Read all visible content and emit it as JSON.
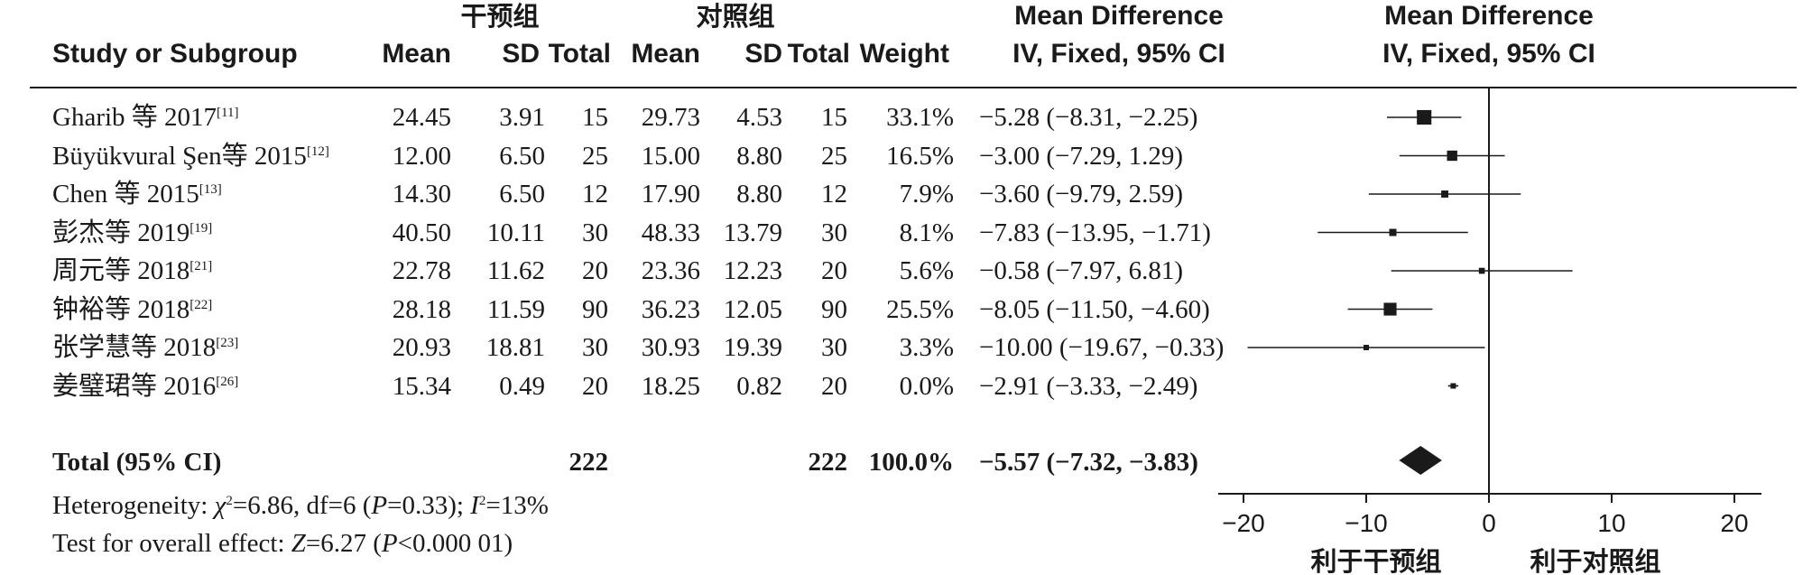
{
  "header": {
    "group1_name": "干预组",
    "group2_name": "对照组",
    "study_col": "Study or Subgroup",
    "mean1": "Mean",
    "sd1": "SD",
    "total1": "Total",
    "mean2": "Mean",
    "sd2": "SD",
    "total2": "Total",
    "weight": "Weight",
    "md_title": "Mean Difference",
    "md_method": "IV, Fixed, 95% CI",
    "plot_title": "Mean Difference",
    "plot_method": "IV, Fixed, 95% CI"
  },
  "rows": [
    {
      "study": "Gharib 等 2017",
      "ref": "[11]",
      "mean1": "24.45",
      "sd1": "3.91",
      "n1": "15",
      "mean2": "29.73",
      "sd2": "4.53",
      "n2": "15",
      "weight": "33.1%",
      "ci": "−5.28 (−8.31, −2.25)"
    },
    {
      "study": "Büyükvural Şen等 2015",
      "ref": "[12]",
      "mean1": "12.00",
      "sd1": "6.50",
      "n1": "25",
      "mean2": "15.00",
      "sd2": "8.80",
      "n2": "25",
      "weight": "16.5%",
      "ci": "−3.00 (−7.29, 1.29)"
    },
    {
      "study": "Chen 等 2015",
      "ref": "[13]",
      "mean1": "14.30",
      "sd1": "6.50",
      "n1": "12",
      "mean2": "17.90",
      "sd2": "8.80",
      "n2": "12",
      "weight": "7.9%",
      "ci": "−3.60 (−9.79, 2.59)"
    },
    {
      "study": "彭杰等 2019",
      "ref": "[19]",
      "mean1": "40.50",
      "sd1": "10.11",
      "n1": "30",
      "mean2": "48.33",
      "sd2": "13.79",
      "n2": "30",
      "weight": "8.1%",
      "ci": "−7.83 (−13.95, −1.71)"
    },
    {
      "study": "周元等 2018",
      "ref": "[21]",
      "mean1": "22.78",
      "sd1": "11.62",
      "n1": "20",
      "mean2": "23.36",
      "sd2": "12.23",
      "n2": "20",
      "weight": "5.6%",
      "ci": "−0.58 (−7.97, 6.81)"
    },
    {
      "study": "钟裕等 2018",
      "ref": "[22]",
      "mean1": "28.18",
      "sd1": "11.59",
      "n1": "90",
      "mean2": "36.23",
      "sd2": "12.05",
      "n2": "90",
      "weight": "25.5%",
      "ci": "−8.05 (−11.50, −4.60)"
    },
    {
      "study": "张学慧等 2018",
      "ref": "[23]",
      "mean1": "20.93",
      "sd1": "18.81",
      "n1": "30",
      "mean2": "30.93",
      "sd2": "19.39",
      "n2": "30",
      "weight": "3.3%",
      "ci": "−10.00 (−19.67, −0.33)"
    },
    {
      "study": "姜璧珺等 2016",
      "ref": "[26]",
      "mean1": "15.34",
      "sd1": "0.49",
      "n1": "20",
      "mean2": "18.25",
      "sd2": "0.82",
      "n2": "20",
      "weight": "0.0%",
      "ci": "−2.91 (−3.33, −2.49)"
    }
  ],
  "total": {
    "label": "Total (95% CI)",
    "n1": "222",
    "n2": "222",
    "weight": "100.0%",
    "ci": "−5.57 (−7.32, −3.83)"
  },
  "heterogeneity": {
    "prefix": "Heterogeneity: ",
    "chi_symbol": "χ",
    "chi_rest": "=6.86, df=6 (",
    "p_symbol": "P",
    "p_rest": "=0.33); ",
    "i_symbol": "I",
    "i_rest": "=13%"
  },
  "overall": {
    "prefix": "Test for overall effect: ",
    "z_symbol": "Z",
    "z_rest": "=6.27 (",
    "p_symbol": "P",
    "p_rest": "<0.000 01)"
  },
  "axis": {
    "ticks": [
      -20,
      -10,
      0,
      10,
      20
    ],
    "tick_labels": [
      "−20",
      "−10",
      "0",
      "10",
      "20"
    ],
    "favours_left": "利于干预组",
    "favours_right": "利于对照组"
  },
  "chart_data": {
    "type": "forest",
    "xlim": [
      -20,
      20
    ],
    "ci_level": "95%",
    "effect_measure": "Mean Difference",
    "studies": [
      {
        "label": "Gharib 等 2017",
        "estimate": -5.28,
        "lower": -8.31,
        "upper": -2.25,
        "weight": 33.1
      },
      {
        "label": "Büyükvural Şen等 2015",
        "estimate": -3.0,
        "lower": -7.29,
        "upper": 1.29,
        "weight": 16.5
      },
      {
        "label": "Chen 等 2015",
        "estimate": -3.6,
        "lower": -9.79,
        "upper": 2.59,
        "weight": 7.9
      },
      {
        "label": "彭杰等 2019",
        "estimate": -7.83,
        "lower": -13.95,
        "upper": -1.71,
        "weight": 8.1
      },
      {
        "label": "周元等 2018",
        "estimate": -0.58,
        "lower": -7.97,
        "upper": 6.81,
        "weight": 5.6
      },
      {
        "label": "钟裕等 2018",
        "estimate": -8.05,
        "lower": -11.5,
        "upper": -4.6,
        "weight": 25.5
      },
      {
        "label": "张学慧等 2018",
        "estimate": -10.0,
        "lower": -19.67,
        "upper": -0.33,
        "weight": 3.3
      },
      {
        "label": "姜璧珺等 2016",
        "estimate": -2.91,
        "lower": -3.33,
        "upper": -2.49,
        "weight": 0.0
      }
    ],
    "pooled": {
      "estimate": -5.57,
      "lower": -7.32,
      "upper": -3.83
    }
  },
  "colors": {
    "ink": "#1a1a1a"
  }
}
